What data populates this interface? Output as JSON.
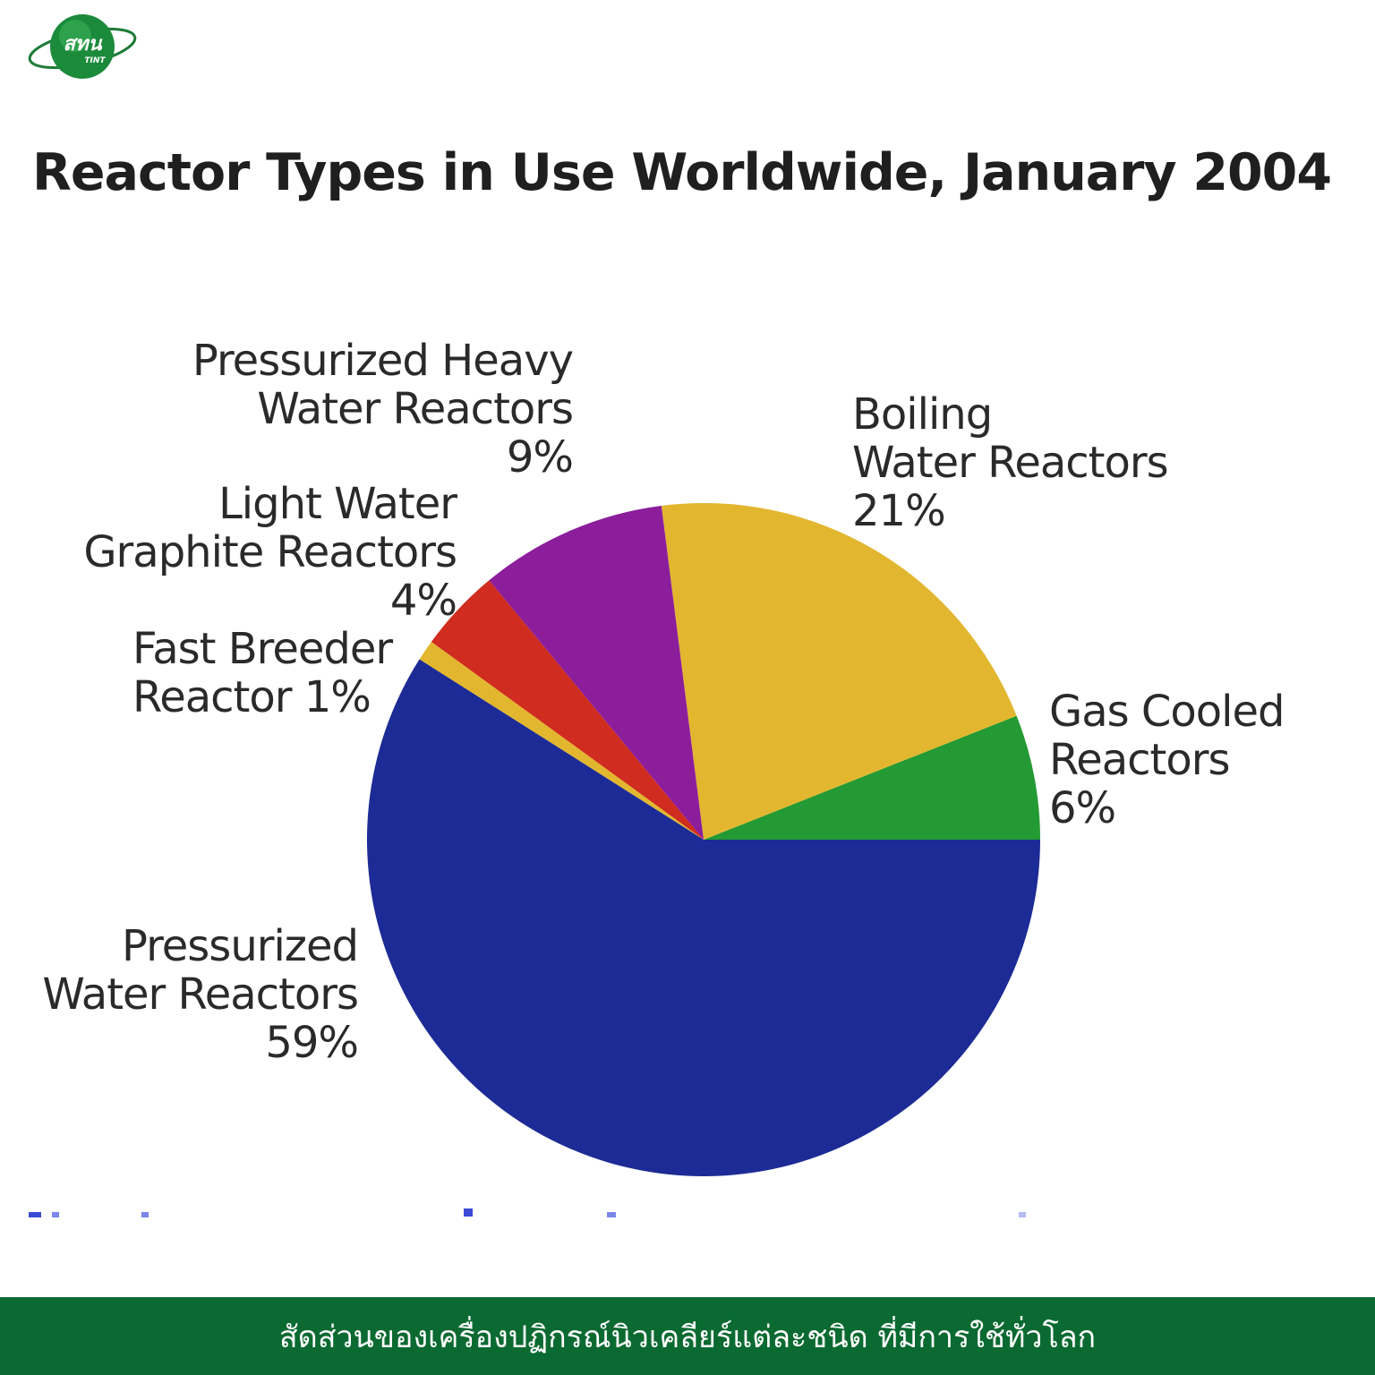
{
  "logo": {
    "text_top": "สทน",
    "text_bottom": "TINT"
  },
  "chart_data": {
    "type": "pie",
    "title": "Reactor Types in Use Worldwide, January 2004",
    "slices": [
      {
        "name": "Gas Cooled Reactors",
        "lines": [
          "Gas Cooled",
          "Reactors"
        ],
        "pct_label": "6%",
        "value": 6,
        "color": "#239a33"
      },
      {
        "name": "Boiling Water Reactors",
        "lines": [
          "Boiling",
          "Water Reactors"
        ],
        "pct_label": "21%",
        "value": 21,
        "color": "#e2b72f"
      },
      {
        "name": "Pressurized Heavy Water Reactors",
        "lines": [
          "Pressurized Heavy",
          "Water Reactors"
        ],
        "pct_label": "9%",
        "value": 9,
        "color": "#8c1e9c"
      },
      {
        "name": "Light Water Graphite Reactors",
        "lines": [
          "Light Water",
          "Graphite Reactors"
        ],
        "pct_label": "4%",
        "value": 4,
        "color": "#d02c1f"
      },
      {
        "name": "Fast Breeder Reactor",
        "lines": [
          "Fast Breeder",
          "Reactor 1%"
        ],
        "pct_label": "",
        "value": 1,
        "color": "#e2b72f"
      },
      {
        "name": "Pressurized Water Reactors",
        "lines": [
          "Pressurized",
          "Water Reactors"
        ],
        "pct_label": "59%",
        "value": 59,
        "color": "#1c2b95"
      }
    ]
  },
  "footer": {
    "caption": "สัดส่วนของเครื่องปฏิกรณ์นิวเคลียร์แต่ละชนิด ที่มีการใช้ทั่วโลก"
  }
}
